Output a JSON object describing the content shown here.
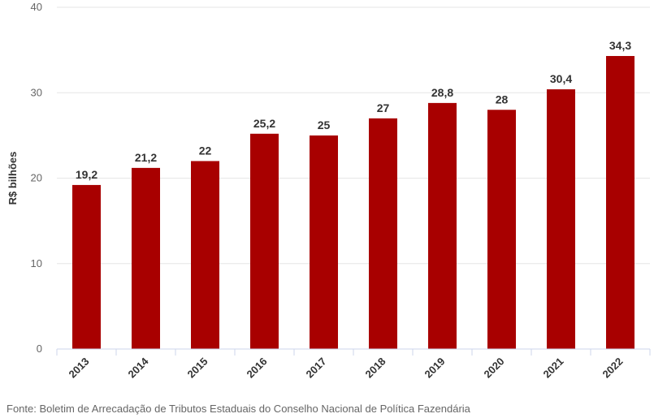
{
  "chart_data": {
    "type": "bar",
    "categories": [
      "2013",
      "2014",
      "2015",
      "2016",
      "2017",
      "2018",
      "2019",
      "2020",
      "2021",
      "2022"
    ],
    "values": [
      19.2,
      21.2,
      22,
      25.2,
      25,
      27,
      28.8,
      28,
      30.4,
      34.3
    ],
    "value_labels": [
      "19,2",
      "21,2",
      "22",
      "25,2",
      "25",
      "27",
      "28,8",
      "28",
      "30,4",
      "34,3"
    ],
    "title": "",
    "xlabel": "",
    "ylabel": "R$ bilhões",
    "ylim": [
      0,
      40
    ],
    "yticks": [
      0,
      10,
      20,
      30,
      40
    ],
    "grid": true,
    "bar_color": "#a80000"
  },
  "source_note": "Fonte: Boletim de Arrecadação de Tributos Estaduais do Conselho Nacional de Política Fazendária"
}
